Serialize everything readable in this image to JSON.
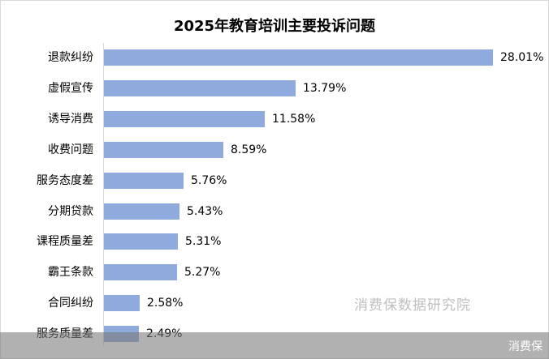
{
  "title": "2025年教育培训主要投诉问题",
  "watermark": "消费保数据研究院",
  "footer": {
    "brand": "消费保"
  },
  "colors": {
    "bar": "#8faadc",
    "axis": "#d9d9d9",
    "footer": "#9a9a9a"
  },
  "chart_data": {
    "type": "bar",
    "orientation": "horizontal",
    "title": "2025年教育培训主要投诉问题",
    "xlabel": "",
    "ylabel": "",
    "unit": "%",
    "grid": false,
    "legend": null,
    "categories": [
      "退款纠纷",
      "虚假宣传",
      "诱导消费",
      "收费问题",
      "服务态度差",
      "分期贷款",
      "课程质量差",
      "霸王条款",
      "合同纠纷",
      "服务质量差"
    ],
    "values": [
      28.01,
      13.79,
      11.58,
      8.59,
      5.76,
      5.43,
      5.31,
      5.27,
      2.58,
      2.49
    ],
    "labels": [
      "28.01%",
      "13.79%",
      "11.58%",
      "8.59%",
      "5.76%",
      "5.43%",
      "5.31%",
      "5.27%",
      "2.58%",
      "2.49%"
    ]
  }
}
